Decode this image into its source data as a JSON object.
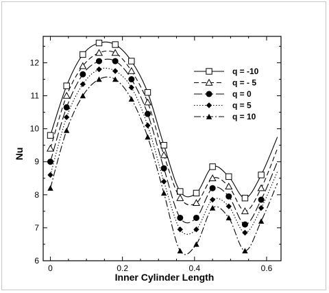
{
  "chart_data": {
    "type": "line",
    "title": "",
    "xlabel": "Inner Cylinder Length",
    "ylabel": "Nu",
    "xlim": [
      -0.02,
      0.64
    ],
    "ylim": [
      6,
      12.8
    ],
    "xticks": [
      0,
      0.2,
      0.4,
      0.6
    ],
    "xtick_labels": [
      "0",
      "0.2",
      "0.4",
      "0.6"
    ],
    "yticks": [
      6,
      7,
      8,
      9,
      10,
      11,
      12
    ],
    "ytick_labels": [
      "6",
      "7",
      "8",
      "9",
      "10",
      "11",
      "12"
    ],
    "grid": false,
    "legend_position": "top-right",
    "series": [
      {
        "name": "q = -10",
        "marker": "square-open",
        "dash": "solid",
        "x": [
          0,
          0.045,
          0.09,
          0.135,
          0.18,
          0.225,
          0.27,
          0.315,
          0.36,
          0.405,
          0.45,
          0.495,
          0.54,
          0.585,
          0.63
        ],
        "y": [
          9.8,
          11.3,
          12.25,
          12.6,
          12.55,
          12.05,
          11.1,
          9.5,
          8.1,
          8.05,
          8.85,
          8.55,
          7.9,
          8.6,
          9.75
        ]
      },
      {
        "name": "q = - 5",
        "marker": "triangle-open",
        "dash": "dashed",
        "x": [
          0,
          0.045,
          0.09,
          0.135,
          0.18,
          0.225,
          0.27,
          0.315,
          0.36,
          0.405,
          0.45,
          0.495,
          0.54,
          0.585,
          0.63
        ],
        "y": [
          9.4,
          11.0,
          11.9,
          12.3,
          12.3,
          11.75,
          10.8,
          9.2,
          7.9,
          7.75,
          8.5,
          8.25,
          7.5,
          8.2,
          9.4
        ]
      },
      {
        "name": "q = 0",
        "marker": "circle-filled",
        "dash": "longdash",
        "x": [
          0,
          0.045,
          0.09,
          0.135,
          0.18,
          0.225,
          0.27,
          0.315,
          0.36,
          0.405,
          0.45,
          0.495,
          0.54,
          0.585,
          0.63
        ],
        "y": [
          9.0,
          10.65,
          11.65,
          12.05,
          12.05,
          11.5,
          10.45,
          8.8,
          7.3,
          7.3,
          8.2,
          7.95,
          7.1,
          7.85,
          9.0
        ]
      },
      {
        "name": "q = 5",
        "marker": "diamond-filled",
        "dash": "dotted",
        "x": [
          0,
          0.045,
          0.09,
          0.135,
          0.18,
          0.225,
          0.27,
          0.315,
          0.36,
          0.405,
          0.45,
          0.495,
          0.54,
          0.585,
          0.63
        ],
        "y": [
          8.6,
          10.35,
          11.35,
          11.8,
          11.75,
          11.25,
          10.1,
          8.4,
          6.95,
          6.95,
          7.85,
          7.65,
          6.85,
          7.6,
          8.7
        ]
      },
      {
        "name": "q = 10",
        "marker": "triangle-filled",
        "dash": "dashdot",
        "x": [
          0,
          0.045,
          0.09,
          0.135,
          0.18,
          0.225,
          0.27,
          0.315,
          0.36,
          0.405,
          0.45,
          0.495,
          0.54,
          0.585,
          0.63
        ],
        "y": [
          8.2,
          9.95,
          11.0,
          11.5,
          11.5,
          10.9,
          9.75,
          8.05,
          6.3,
          6.5,
          7.6,
          7.3,
          6.3,
          7.2,
          8.35
        ]
      }
    ]
  }
}
